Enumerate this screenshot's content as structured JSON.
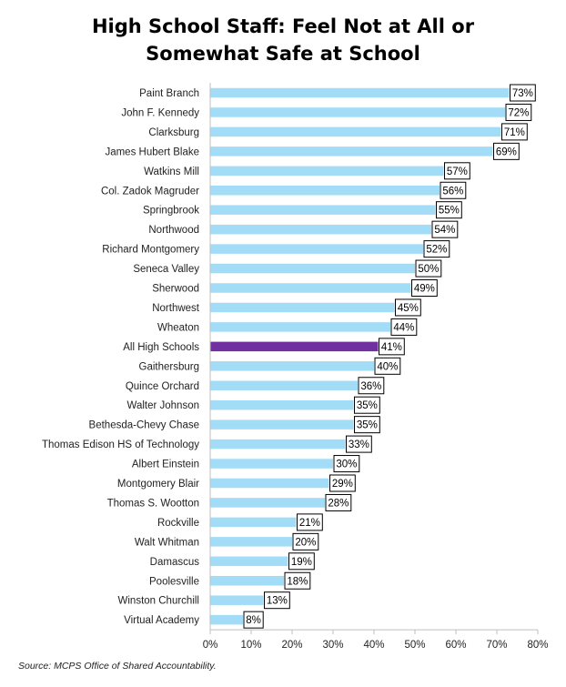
{
  "chart_data": {
    "type": "bar",
    "orientation": "horizontal",
    "title_lines": [
      "High School Staff: Feel Not at All or",
      "Somewhat Safe at School"
    ],
    "categories": [
      "Paint Branch",
      "John F. Kennedy",
      "Clarksburg",
      "James Hubert Blake",
      "Watkins Mill",
      "Col. Zadok Magruder",
      "Springbrook",
      "Northwood",
      "Richard Montgomery",
      "Seneca Valley",
      "Sherwood",
      "Northwest",
      "Wheaton",
      "All High Schools",
      "Gaithersburg",
      "Quince Orchard",
      "Walter Johnson",
      "Bethesda-Chevy Chase",
      "Thomas Edison HS of Technology",
      "Albert Einstein",
      "Montgomery Blair",
      "Thomas S. Wootton",
      "Rockville",
      "Walt Whitman",
      "Damascus",
      "Poolesville",
      "Winston Churchill",
      "Virtual Academy"
    ],
    "values": [
      73,
      72,
      71,
      69,
      57,
      56,
      55,
      54,
      52,
      50,
      49,
      45,
      44,
      41,
      40,
      36,
      35,
      35,
      33,
      30,
      29,
      28,
      21,
      20,
      19,
      18,
      13,
      8
    ],
    "data_labels": [
      "73%",
      "72%",
      "71%",
      "69%",
      "57%",
      "56%",
      "55%",
      "54%",
      "52%",
      "50%",
      "49%",
      "45%",
      "44%",
      "41%",
      "40%",
      "36%",
      "35%",
      "35%",
      "33%",
      "30%",
      "29%",
      "28%",
      "21%",
      "20%",
      "19%",
      "18%",
      "13%",
      "8%"
    ],
    "highlight_category": "All High Schools",
    "xlim": [
      0,
      80
    ],
    "x_ticks": [
      0,
      10,
      20,
      30,
      40,
      50,
      60,
      70,
      80
    ],
    "x_tick_labels": [
      "0%",
      "10%",
      "20%",
      "30%",
      "40%",
      "50%",
      "60%",
      "70%",
      "80%"
    ],
    "xlabel": "",
    "ylabel": "",
    "grid": false,
    "legend": "none",
    "colors": {
      "bar": "#a3dcf7",
      "highlight": "#7030a0",
      "axis": "#bfbfbf"
    }
  },
  "source": "Source: MCPS Office of Shared Accountability."
}
